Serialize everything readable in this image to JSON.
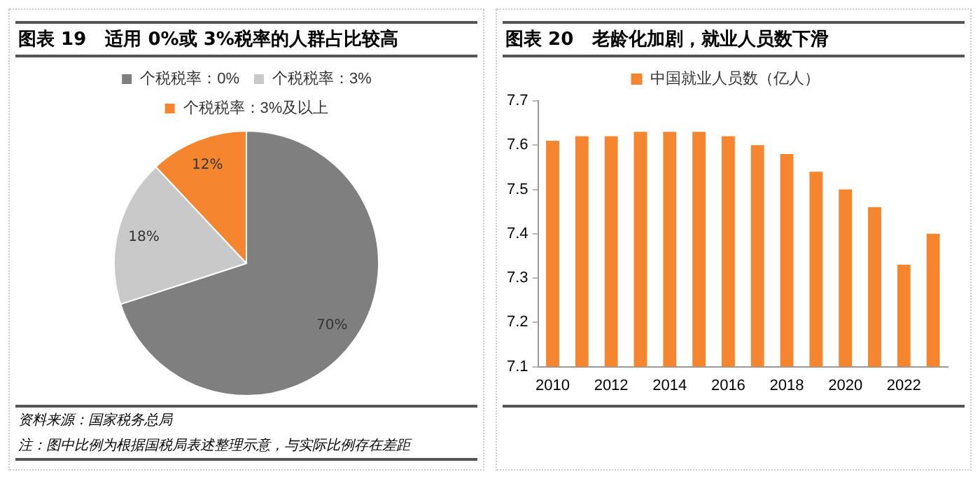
{
  "chart_data": [
    {
      "type": "pie",
      "title": "图表 19   适用 0%或 3%税率的人群占比较高",
      "categories": [
        "个税税率：0%",
        "个税税率：3%",
        "个税税率：3%及以上"
      ],
      "values": [
        70,
        18,
        12
      ],
      "colors": [
        "#7f7f7f",
        "#c9c9c9",
        "#f5862f"
      ],
      "value_labels": [
        "70%",
        "18%",
        "12%"
      ],
      "legend": "top",
      "annotations": [
        "资料来源：国家税务总局",
        "注：图中比例为根据国税局表述整理示意，与实际比例存在差距"
      ]
    },
    {
      "type": "bar",
      "title": "图表 20   老龄化加剧，就业人员数下滑",
      "categories": [
        "2010",
        null,
        "2012",
        null,
        "2014",
        null,
        "2016",
        null,
        "2018",
        null,
        "2020",
        null,
        "2022",
        null
      ],
      "series": [
        {
          "name": "中国就业人员数（亿人）",
          "color": "#f5862f",
          "values": [
            7.61,
            7.62,
            7.62,
            7.63,
            7.63,
            7.63,
            7.62,
            7.6,
            7.58,
            7.54,
            7.5,
            7.46,
            7.33,
            7.4
          ]
        }
      ],
      "ylim": [
        7.1,
        7.7
      ],
      "yticks": [
        7.1,
        7.2,
        7.3,
        7.4,
        7.5,
        7.6,
        7.7
      ],
      "grid": false,
      "legend": "top"
    }
  ]
}
